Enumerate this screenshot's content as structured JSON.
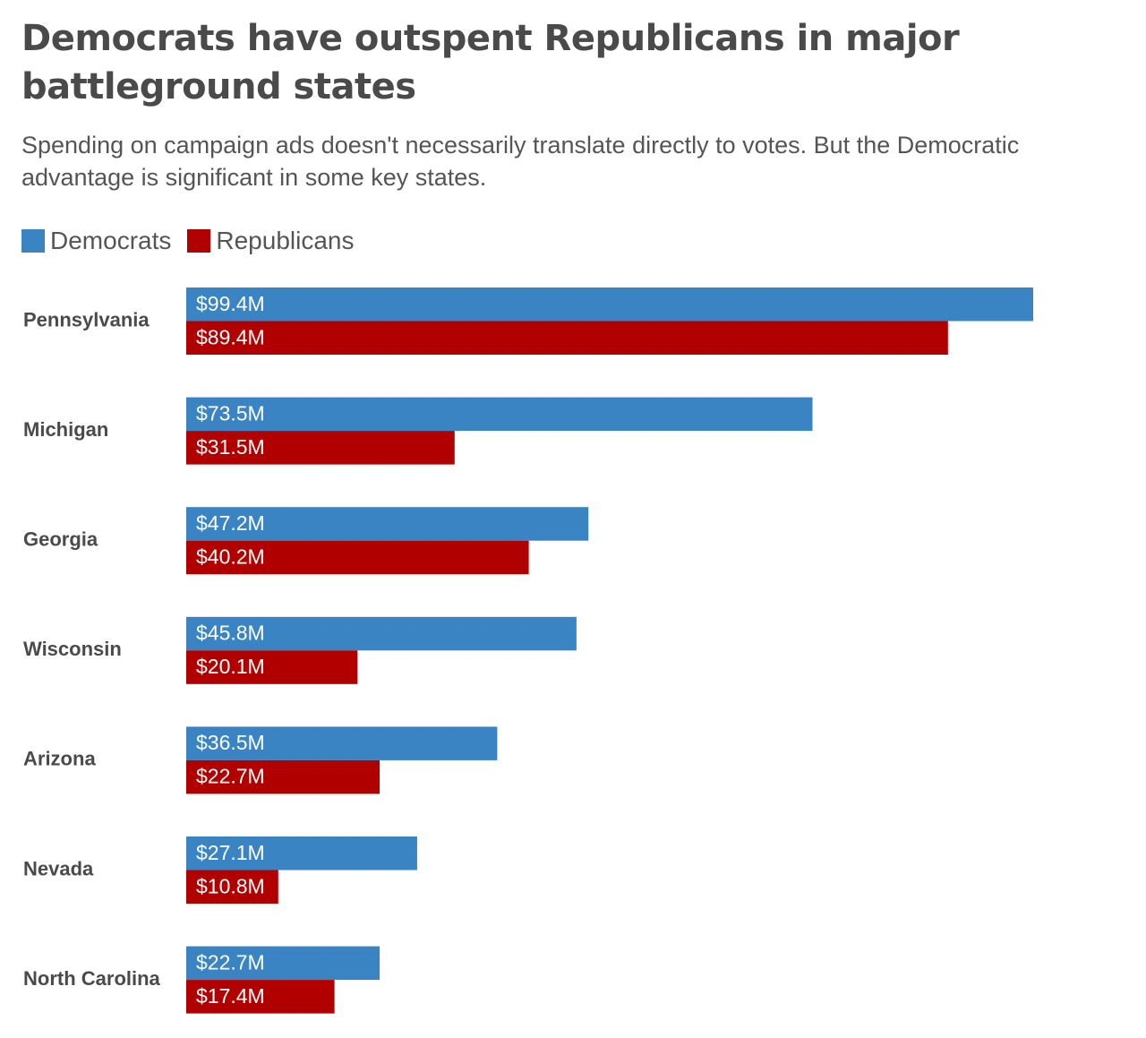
{
  "title": "Democrats have outspent Republicans in major battleground states",
  "subtitle": "Spending on campaign ads doesn't necessarily translate directly to votes. But the Democratic advantage is significant in some key states.",
  "legend": {
    "democrats": "Democrats",
    "republicans": "Republicans"
  },
  "colors": {
    "democrats": "#3a84c4",
    "republicans": "#b00000"
  },
  "chart_data": {
    "type": "bar",
    "orientation": "horizontal",
    "title": "Democrats have outspent Republicans in major battleground states",
    "subtitle": "Spending on campaign ads doesn't necessarily translate directly to votes. But the Democratic advantage is significant in some key states.",
    "categories": [
      "Pennsylvania",
      "Michigan",
      "Georgia",
      "Wisconsin",
      "Arizona",
      "Nevada",
      "North Carolina"
    ],
    "series": [
      {
        "name": "Democrats",
        "values": [
          99.4,
          73.5,
          47.2,
          45.8,
          36.5,
          27.1,
          22.7
        ],
        "labels": [
          "$99.4M",
          "$73.5M",
          "$47.2M",
          "$45.8M",
          "$36.5M",
          "$27.1M",
          "$22.7M"
        ]
      },
      {
        "name": "Republicans",
        "values": [
          89.4,
          31.5,
          40.2,
          20.1,
          22.7,
          10.8,
          17.4
        ],
        "labels": [
          "$89.4M",
          "$31.5M",
          "$40.2M",
          "$20.1M",
          "$22.7M",
          "$10.8M",
          "$17.4M"
        ]
      }
    ],
    "unit": "$M",
    "xlim": [
      0,
      99.4
    ],
    "legend_position": "top-left",
    "grid": false
  }
}
